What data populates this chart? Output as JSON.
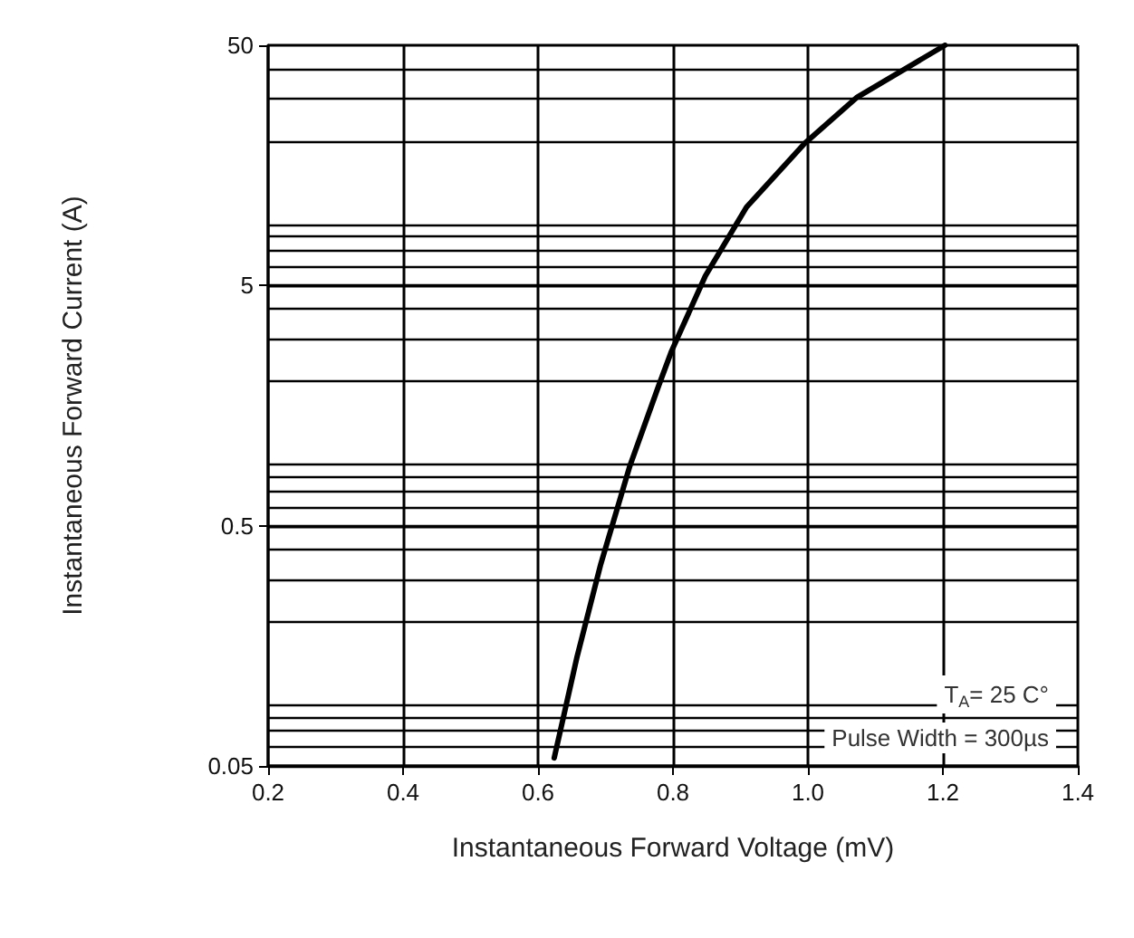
{
  "chart_data": {
    "type": "line",
    "xlabel": "Instantaneous Forward Voltage (mV)",
    "ylabel": "Instantaneous Forward Current (A)",
    "x": [
      0.624,
      0.658,
      0.693,
      0.736,
      0.779,
      0.798,
      0.848,
      0.909,
      0.995,
      1.073,
      1.203
    ],
    "series": [
      {
        "color": "#000000",
        "values": [
          0.054,
          0.143,
          0.346,
          0.885,
          1.92,
          2.67,
          5.48,
          10.6,
          19.5,
          30.4,
          50
        ]
      }
    ],
    "xlim": [
      0.2,
      1.4
    ],
    "xticks": [
      {
        "value": 0.2,
        "label": "0.2"
      },
      {
        "value": 0.4,
        "label": "0.4"
      },
      {
        "value": 0.6,
        "label": "0.6"
      },
      {
        "value": 0.8,
        "label": "0.8"
      },
      {
        "value": 1.0,
        "label": "1.0"
      },
      {
        "value": 1.2,
        "label": "1.2"
      },
      {
        "value": 1.4,
        "label": "1.4"
      }
    ],
    "ylim": [
      0.05,
      50
    ],
    "yticks": [
      0.05,
      0.5,
      5,
      50
    ],
    "log": "y",
    "grid": true,
    "marker": "none",
    "line_style": "solid",
    "annotations": [
      "T$_{A}$= 25 C°",
      "Pulse Width = 300µs"
    ]
  }
}
